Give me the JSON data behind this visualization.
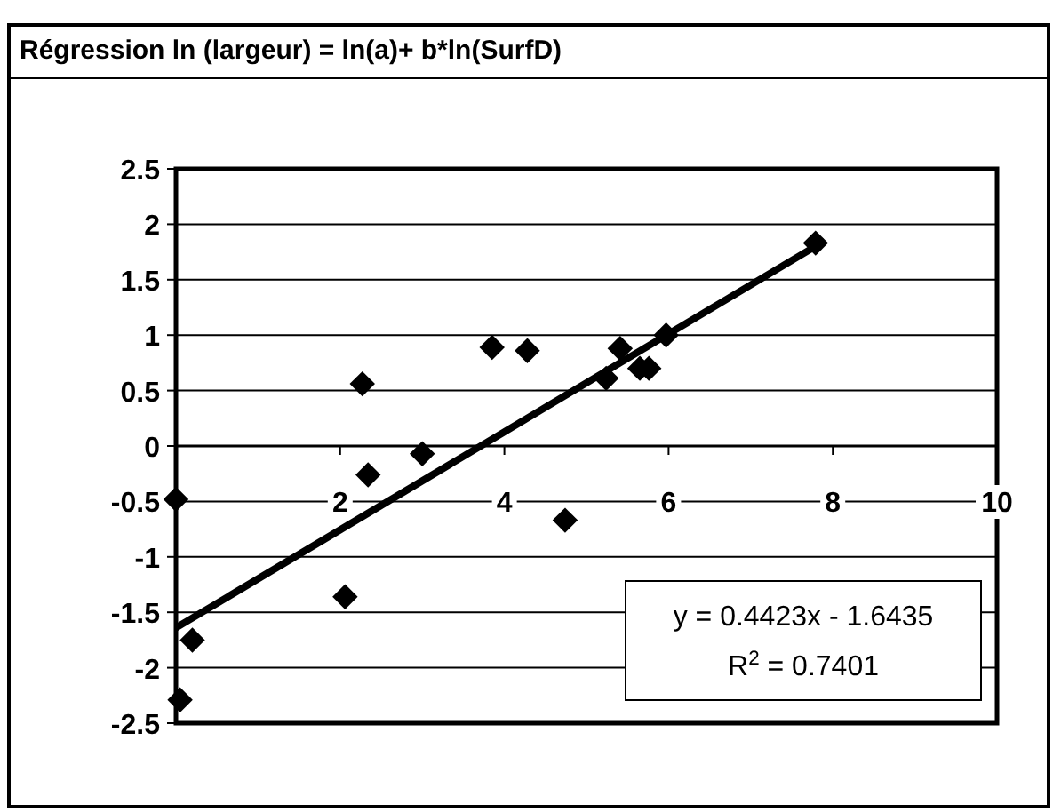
{
  "chart_data": {
    "type": "scatter",
    "title": "Régression ln (largeur) = ln(a)+ b*ln(SurfD)",
    "xlim": [
      0,
      10
    ],
    "xticks": [
      {
        "value": 0,
        "label": null
      },
      2,
      4,
      6,
      8,
      10
    ],
    "ylim": [
      -2.5,
      2.5
    ],
    "yticks": [
      -2.5,
      -2,
      -1.5,
      -1,
      -0.5,
      0,
      0.5,
      1,
      1.5,
      2,
      2.5
    ],
    "grid": "y",
    "marker": "diamond",
    "series": [
      {
        "color": "#000000",
        "x": [
          0,
          0.05,
          0.2,
          2.06,
          2.27,
          2.34,
          3.0,
          3.85,
          4.28,
          4.74,
          5.24,
          5.41,
          5.65,
          5.76,
          5.97,
          7.79
        ],
        "values": [
          -0.48,
          -2.29,
          -1.75,
          -1.36,
          0.56,
          -0.26,
          -0.07,
          0.89,
          0.86,
          -0.67,
          0.61,
          0.88,
          0.7,
          0.7,
          1.0,
          1.83
        ]
      },
      {
        "type": "line",
        "color": "#000000",
        "x": [
          0,
          7.9
        ],
        "values": [
          -1.64,
          1.85
        ],
        "marker": "none",
        "line_style": "solid"
      }
    ],
    "annotations": [
      "y = 0.4423x - 1.6435",
      "R$^{2}$ = 0.7401"
    ]
  }
}
